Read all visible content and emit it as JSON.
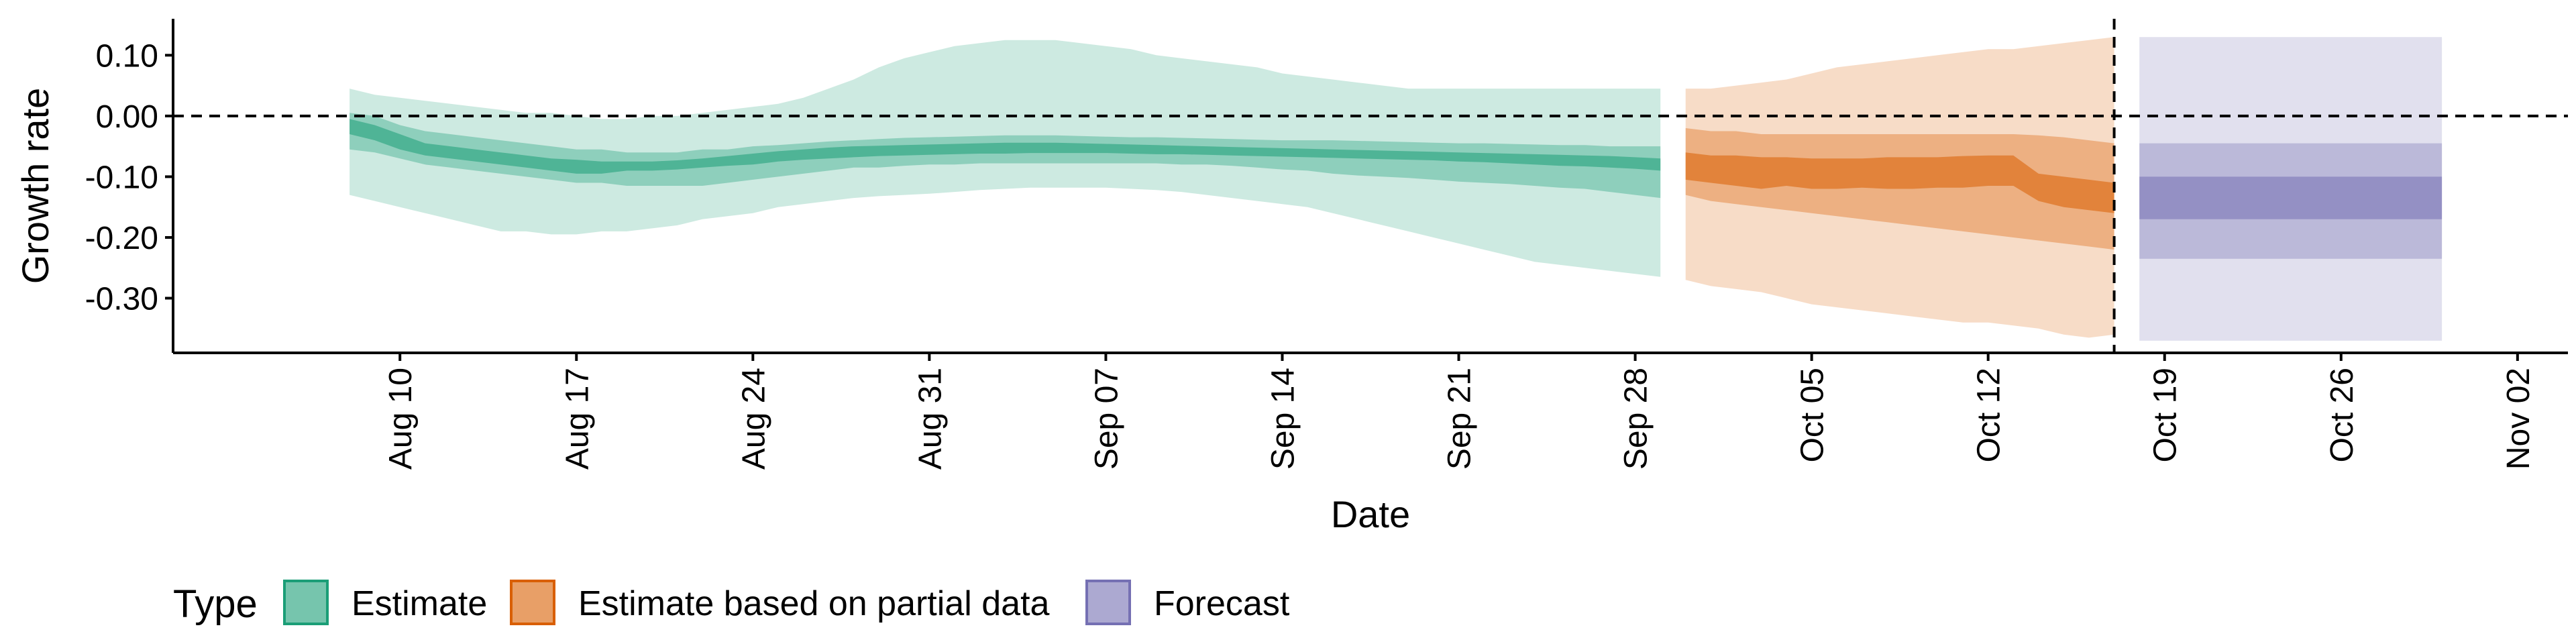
{
  "chart_data": {
    "type": "area",
    "title": "",
    "xlabel": "Date",
    "ylabel": "Growth rate",
    "x_range": [
      "2020-08-01",
      "2020-11-04"
    ],
    "ylim": [
      -0.39,
      0.16
    ],
    "x_ticks": [
      {
        "date": "2020-08-10",
        "label": "Aug 10"
      },
      {
        "date": "2020-08-17",
        "label": "Aug 17"
      },
      {
        "date": "2020-08-24",
        "label": "Aug 24"
      },
      {
        "date": "2020-08-31",
        "label": "Aug 31"
      },
      {
        "date": "2020-09-07",
        "label": "Sep 07"
      },
      {
        "date": "2020-09-14",
        "label": "Sep 14"
      },
      {
        "date": "2020-09-21",
        "label": "Sep 21"
      },
      {
        "date": "2020-09-28",
        "label": "Sep 28"
      },
      {
        "date": "2020-10-05",
        "label": "Oct 05"
      },
      {
        "date": "2020-10-12",
        "label": "Oct 12"
      },
      {
        "date": "2020-10-19",
        "label": "Oct 19"
      },
      {
        "date": "2020-10-26",
        "label": "Oct 26"
      },
      {
        "date": "2020-11-02",
        "label": "Nov 02"
      }
    ],
    "y_ticks": [
      {
        "value": 0.1,
        "label": "0.10"
      },
      {
        "value": 0.0,
        "label": "0.00"
      },
      {
        "value": -0.1,
        "label": "-0.10"
      },
      {
        "value": -0.2,
        "label": "-0.20"
      },
      {
        "value": -0.3,
        "label": "-0.30"
      }
    ],
    "reference_lines": {
      "horizontal_y": 0.0,
      "vertical_date": "2020-10-17",
      "style": "dashed"
    },
    "legend": {
      "title": "Type",
      "position": "bottom-left"
    },
    "series": [
      {
        "name": "Estimate",
        "color": "#1b9e77",
        "x": [
          "2020-08-08",
          "2020-08-09",
          "2020-08-10",
          "2020-08-11",
          "2020-08-12",
          "2020-08-13",
          "2020-08-14",
          "2020-08-15",
          "2020-08-16",
          "2020-08-17",
          "2020-08-18",
          "2020-08-19",
          "2020-08-20",
          "2020-08-21",
          "2020-08-22",
          "2020-08-23",
          "2020-08-24",
          "2020-08-25",
          "2020-08-26",
          "2020-08-27",
          "2020-08-28",
          "2020-08-29",
          "2020-08-30",
          "2020-08-31",
          "2020-09-01",
          "2020-09-02",
          "2020-09-03",
          "2020-09-04",
          "2020-09-05",
          "2020-09-06",
          "2020-09-07",
          "2020-09-08",
          "2020-09-09",
          "2020-09-10",
          "2020-09-11",
          "2020-09-12",
          "2020-09-13",
          "2020-09-14",
          "2020-09-15",
          "2020-09-16",
          "2020-09-17",
          "2020-09-18",
          "2020-09-19",
          "2020-09-20",
          "2020-09-21",
          "2020-09-22",
          "2020-09-23",
          "2020-09-24",
          "2020-09-25",
          "2020-09-26",
          "2020-09-27",
          "2020-09-28",
          "2020-09-29"
        ],
        "lower_90": [
          -0.13,
          -0.14,
          -0.15,
          -0.16,
          -0.17,
          -0.18,
          -0.19,
          -0.19,
          -0.195,
          -0.195,
          -0.19,
          -0.19,
          -0.185,
          -0.18,
          -0.17,
          -0.165,
          -0.16,
          -0.15,
          -0.145,
          -0.14,
          -0.135,
          -0.132,
          -0.13,
          -0.128,
          -0.125,
          -0.122,
          -0.12,
          -0.118,
          -0.118,
          -0.118,
          -0.118,
          -0.12,
          -0.122,
          -0.125,
          -0.13,
          -0.135,
          -0.14,
          -0.145,
          -0.15,
          -0.16,
          -0.17,
          -0.18,
          -0.19,
          -0.2,
          -0.21,
          -0.22,
          -0.23,
          -0.24,
          -0.245,
          -0.25,
          -0.255,
          -0.26,
          -0.265
        ],
        "upper_90": [
          0.045,
          0.035,
          0.03,
          0.025,
          0.02,
          0.015,
          0.01,
          0.005,
          0.005,
          0.0,
          -0.005,
          -0.005,
          0.0,
          0.0,
          0.005,
          0.01,
          0.015,
          0.02,
          0.03,
          0.045,
          0.06,
          0.08,
          0.095,
          0.105,
          0.115,
          0.12,
          0.125,
          0.125,
          0.125,
          0.12,
          0.115,
          0.11,
          0.1,
          0.095,
          0.09,
          0.085,
          0.08,
          0.07,
          0.065,
          0.06,
          0.055,
          0.05,
          0.045,
          0.045,
          0.045,
          0.045,
          0.045,
          0.045,
          0.045,
          0.045,
          0.045,
          0.045,
          0.045
        ],
        "lower_50": [
          -0.055,
          -0.06,
          -0.07,
          -0.08,
          -0.085,
          -0.09,
          -0.095,
          -0.1,
          -0.105,
          -0.11,
          -0.11,
          -0.115,
          -0.115,
          -0.115,
          -0.115,
          -0.11,
          -0.105,
          -0.1,
          -0.095,
          -0.09,
          -0.085,
          -0.085,
          -0.082,
          -0.08,
          -0.08,
          -0.078,
          -0.078,
          -0.078,
          -0.078,
          -0.078,
          -0.078,
          -0.078,
          -0.078,
          -0.08,
          -0.08,
          -0.082,
          -0.085,
          -0.088,
          -0.09,
          -0.095,
          -0.098,
          -0.1,
          -0.102,
          -0.105,
          -0.108,
          -0.11,
          -0.112,
          -0.115,
          -0.118,
          -0.12,
          -0.125,
          -0.13,
          -0.135
        ],
        "upper_50": [
          0.005,
          0.0,
          -0.015,
          -0.025,
          -0.03,
          -0.035,
          -0.04,
          -0.045,
          -0.05,
          -0.055,
          -0.055,
          -0.06,
          -0.06,
          -0.06,
          -0.055,
          -0.055,
          -0.05,
          -0.048,
          -0.045,
          -0.042,
          -0.04,
          -0.038,
          -0.036,
          -0.035,
          -0.034,
          -0.033,
          -0.032,
          -0.032,
          -0.032,
          -0.033,
          -0.034,
          -0.035,
          -0.035,
          -0.036,
          -0.037,
          -0.038,
          -0.039,
          -0.04,
          -0.04,
          -0.04,
          -0.041,
          -0.042,
          -0.043,
          -0.044,
          -0.045,
          -0.045,
          -0.046,
          -0.047,
          -0.048,
          -0.048,
          -0.05,
          -0.05,
          -0.05
        ],
        "lower_20": [
          -0.03,
          -0.04,
          -0.055,
          -0.065,
          -0.07,
          -0.075,
          -0.08,
          -0.085,
          -0.09,
          -0.095,
          -0.095,
          -0.09,
          -0.09,
          -0.088,
          -0.085,
          -0.082,
          -0.08,
          -0.075,
          -0.072,
          -0.07,
          -0.068,
          -0.066,
          -0.065,
          -0.064,
          -0.063,
          -0.062,
          -0.062,
          -0.061,
          -0.061,
          -0.061,
          -0.061,
          -0.062,
          -0.063,
          -0.063,
          -0.064,
          -0.065,
          -0.066,
          -0.067,
          -0.068,
          -0.069,
          -0.07,
          -0.071,
          -0.072,
          -0.073,
          -0.075,
          -0.076,
          -0.078,
          -0.08,
          -0.082,
          -0.083,
          -0.085,
          -0.087,
          -0.09
        ],
        "upper_20": [
          -0.005,
          -0.015,
          -0.03,
          -0.045,
          -0.05,
          -0.055,
          -0.06,
          -0.065,
          -0.07,
          -0.072,
          -0.075,
          -0.075,
          -0.075,
          -0.073,
          -0.07,
          -0.066,
          -0.062,
          -0.058,
          -0.055,
          -0.052,
          -0.05,
          -0.049,
          -0.048,
          -0.047,
          -0.046,
          -0.045,
          -0.044,
          -0.044,
          -0.044,
          -0.045,
          -0.046,
          -0.047,
          -0.048,
          -0.049,
          -0.05,
          -0.051,
          -0.052,
          -0.053,
          -0.054,
          -0.055,
          -0.056,
          -0.057,
          -0.058,
          -0.059,
          -0.06,
          -0.061,
          -0.062,
          -0.063,
          -0.064,
          -0.065,
          -0.066,
          -0.068,
          -0.07
        ]
      },
      {
        "name": "Estimate based on partial data",
        "color": "#d95f02",
        "x": [
          "2020-09-30",
          "2020-10-01",
          "2020-10-02",
          "2020-10-03",
          "2020-10-04",
          "2020-10-05",
          "2020-10-06",
          "2020-10-07",
          "2020-10-08",
          "2020-10-09",
          "2020-10-10",
          "2020-10-11",
          "2020-10-12",
          "2020-10-13",
          "2020-10-14",
          "2020-10-15",
          "2020-10-16",
          "2020-10-17"
        ],
        "lower_90": [
          -0.27,
          -0.28,
          -0.285,
          -0.29,
          -0.3,
          -0.31,
          -0.315,
          -0.32,
          -0.325,
          -0.33,
          -0.335,
          -0.34,
          -0.34,
          -0.345,
          -0.35,
          -0.36,
          -0.365,
          -0.36
        ],
        "upper_90": [
          0.045,
          0.045,
          0.05,
          0.055,
          0.06,
          0.07,
          0.08,
          0.085,
          0.09,
          0.095,
          0.1,
          0.105,
          0.11,
          0.11,
          0.115,
          0.12,
          0.125,
          0.13
        ],
        "lower_50": [
          -0.13,
          -0.14,
          -0.145,
          -0.15,
          -0.155,
          -0.16,
          -0.165,
          -0.17,
          -0.175,
          -0.18,
          -0.185,
          -0.19,
          -0.195,
          -0.2,
          -0.205,
          -0.21,
          -0.215,
          -0.22
        ],
        "upper_50": [
          -0.02,
          -0.025,
          -0.025,
          -0.03,
          -0.03,
          -0.03,
          -0.03,
          -0.03,
          -0.03,
          -0.03,
          -0.03,
          -0.03,
          -0.03,
          -0.03,
          -0.032,
          -0.035,
          -0.04,
          -0.045
        ],
        "lower_20": [
          -0.105,
          -0.11,
          -0.115,
          -0.12,
          -0.115,
          -0.12,
          -0.12,
          -0.118,
          -0.12,
          -0.12,
          -0.118,
          -0.118,
          -0.115,
          -0.115,
          -0.14,
          -0.15,
          -0.155,
          -0.16
        ],
        "upper_20": [
          -0.06,
          -0.065,
          -0.065,
          -0.068,
          -0.068,
          -0.07,
          -0.07,
          -0.07,
          -0.068,
          -0.068,
          -0.068,
          -0.066,
          -0.065,
          -0.065,
          -0.095,
          -0.1,
          -0.105,
          -0.11
        ]
      },
      {
        "name": "Forecast",
        "color": "#7570b3",
        "x": [
          "2020-10-18",
          "2020-10-30"
        ],
        "lower_90": [
          -0.37,
          -0.37
        ],
        "upper_90": [
          0.13,
          0.13
        ],
        "lower_50": [
          -0.235,
          -0.235
        ],
        "upper_50": [
          -0.045,
          -0.045
        ],
        "lower_20": [
          -0.17,
          -0.17
        ],
        "upper_20": [
          -0.1,
          -0.1
        ]
      }
    ]
  }
}
